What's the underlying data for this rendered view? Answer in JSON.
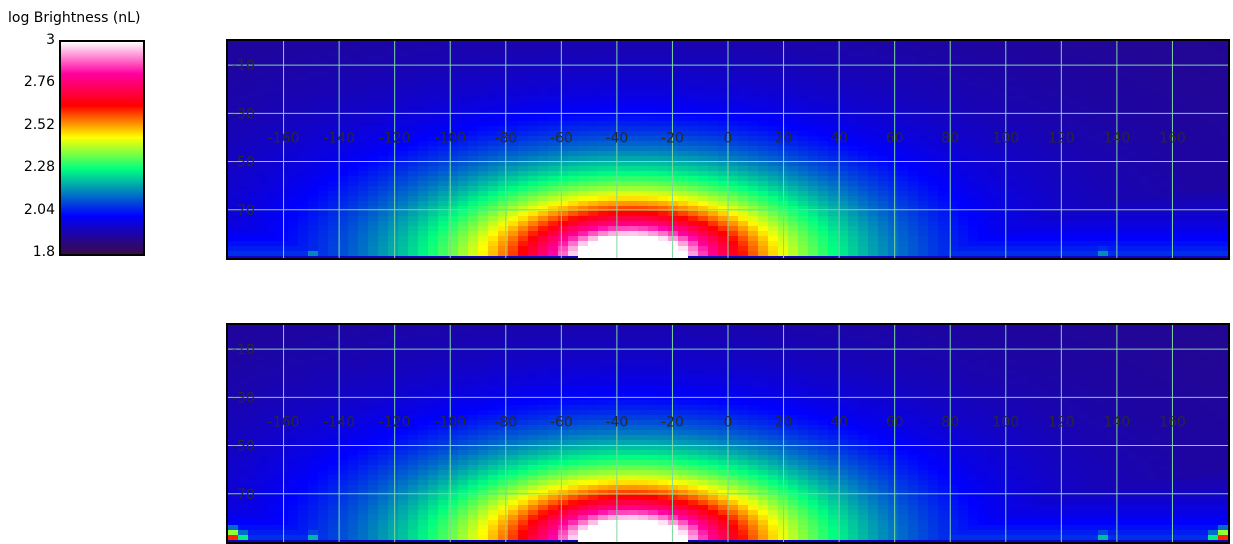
{
  "legend": {
    "title": "log Brightness (nL)",
    "ticks": [
      "3",
      "2.76",
      "2.52",
      "2.28",
      "2.04",
      "1.8"
    ],
    "range": [
      1.8,
      3.0
    ],
    "colors": [
      "#3a0a4a",
      "#0000ff",
      "#00ff80",
      "#ffff00",
      "#ff0000",
      "#ff00a0",
      "#ffffff"
    ]
  },
  "chart_data": [
    {
      "type": "heatmap",
      "title": "",
      "colorbar_label": "log Brightness (nL)",
      "colorbar_range": [
        1.8,
        3.0
      ],
      "x_ticks": [
        "-160",
        "-140",
        "-120",
        "-100",
        "-80",
        "-60",
        "-40",
        "-20",
        "0",
        "20",
        "40",
        "60",
        "80",
        "100",
        "120",
        "140",
        "160"
      ],
      "y_ticks": [
        "-10",
        "-30",
        "-50",
        "-70"
      ],
      "xlim": [
        -180,
        180
      ],
      "ylim": [
        -90,
        0
      ],
      "grid": true,
      "peaks": [
        {
          "x": -35,
          "y": -90,
          "value": 3.0
        },
        {
          "x": -150,
          "y": -90,
          "value": 2.2
        },
        {
          "x": 135,
          "y": -90,
          "value": 2.2
        }
      ]
    },
    {
      "type": "heatmap",
      "title": "",
      "colorbar_label": "log Brightness (nL)",
      "colorbar_range": [
        1.8,
        3.0
      ],
      "x_ticks": [
        "-160",
        "-140",
        "-120",
        "-100",
        "-80",
        "-60",
        "-40",
        "-20",
        "0",
        "20",
        "40",
        "60",
        "80",
        "100",
        "120",
        "140",
        "160"
      ],
      "y_ticks": [
        "-10",
        "-30",
        "-50",
        "-70"
      ],
      "xlim": [
        -180,
        180
      ],
      "ylim": [
        -90,
        0
      ],
      "grid": true,
      "peaks": [
        {
          "x": -35,
          "y": -90,
          "value": 3.0
        },
        {
          "x": -150,
          "y": -90,
          "value": 2.25
        },
        {
          "x": 135,
          "y": -90,
          "value": 2.25
        },
        {
          "x": -178,
          "y": -90,
          "value": 2.7
        },
        {
          "x": 178,
          "y": -90,
          "value": 2.7
        }
      ]
    }
  ]
}
